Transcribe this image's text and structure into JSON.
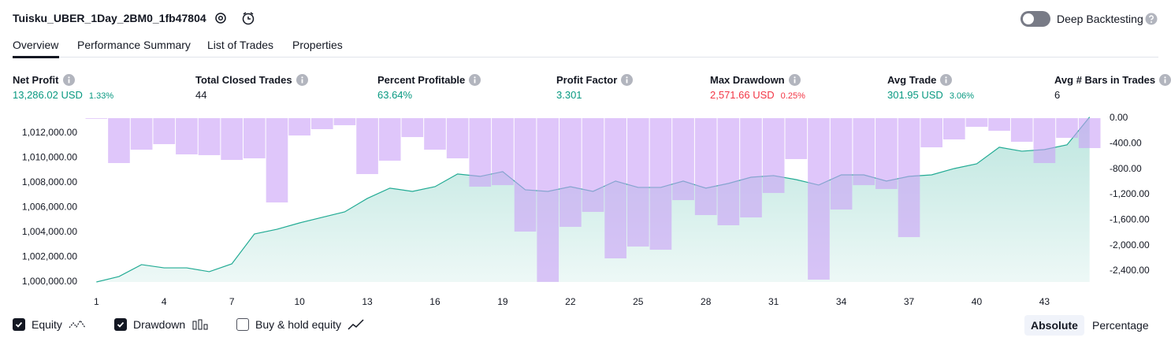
{
  "header": {
    "title": "Tuisku_UBER_1Day_2BM0_1fb47804",
    "deep_backtesting": "Deep Backtesting"
  },
  "tabs": [
    "Overview",
    "Performance Summary",
    "List of Trades",
    "Properties"
  ],
  "metrics": [
    {
      "label": "Net Profit",
      "value": "13,286.02 USD",
      "extra": "1.33%",
      "color": "#089981"
    },
    {
      "label": "Total Closed Trades",
      "value": "44",
      "color": "#131722"
    },
    {
      "label": "Percent Profitable",
      "value": "63.64%",
      "color": "#089981"
    },
    {
      "label": "Profit Factor",
      "value": "3.301",
      "color": "#089981"
    },
    {
      "label": "Max Drawdown",
      "value": "2,571.66 USD",
      "extra": "0.25%",
      "color": "#f23645"
    },
    {
      "label": "Avg Trade",
      "value": "301.95 USD",
      "extra": "3.06%",
      "color": "#089981"
    },
    {
      "label": "Avg # Bars in Trades",
      "value": "6",
      "color": "#131722"
    }
  ],
  "chart_data": {
    "type": "combo",
    "x": [
      1,
      2,
      3,
      4,
      5,
      6,
      7,
      8,
      9,
      10,
      11,
      12,
      13,
      14,
      15,
      16,
      17,
      18,
      19,
      20,
      21,
      22,
      23,
      24,
      25,
      26,
      27,
      28,
      29,
      30,
      31,
      32,
      33,
      34,
      35,
      36,
      37,
      38,
      39,
      40,
      41,
      42,
      43,
      44,
      45
    ],
    "xlim": [
      0.5,
      45.5
    ],
    "xticks": [
      1,
      4,
      7,
      10,
      13,
      16,
      19,
      22,
      25,
      28,
      31,
      34,
      37,
      40,
      43
    ],
    "series": [
      {
        "name": "Equity",
        "type": "line",
        "color": "#22ab94",
        "values": [
          1000000,
          1000440,
          1001400,
          1001140,
          1001140,
          1000830,
          1001460,
          1003870,
          1004250,
          1004760,
          1005210,
          1005650,
          1006730,
          1007560,
          1007300,
          1007680,
          1008700,
          1008510,
          1008890,
          1007430,
          1007300,
          1007680,
          1007300,
          1008130,
          1007620,
          1007620,
          1008130,
          1007560,
          1007940,
          1008440,
          1008570,
          1008250,
          1007810,
          1008630,
          1008630,
          1008130,
          1008510,
          1008630,
          1009140,
          1009520,
          1010860,
          1010540,
          1010670,
          1011050,
          1013286.02
        ]
      },
      {
        "name": "Drawdown",
        "type": "bar",
        "axis": "y2",
        "color": "#c9a0f7",
        "values": [
          -10,
          -705,
          -495,
          -408,
          -569,
          -581,
          -656,
          -631,
          -1324,
          -272,
          -173,
          -111,
          -878,
          -668,
          -297,
          -495,
          -631,
          -1076,
          -1052,
          -1781,
          -2571.66,
          -1707,
          -1472,
          -2202,
          -2016,
          -2066,
          -1287,
          -1522,
          -1682,
          -1559,
          -1175,
          -643,
          -2536,
          -1435,
          -1052,
          -1113,
          -1868,
          -458,
          -334,
          -136,
          -198,
          -371,
          -705,
          -309,
          -470
        ]
      }
    ],
    "ylim": [
      1000000,
      1013200
    ],
    "yticks": [
      {
        "value": 1000000,
        "label": "1,000,000.00"
      },
      {
        "value": 1002000,
        "label": "1,002,000.00"
      },
      {
        "value": 1004000,
        "label": "1,004,000.00"
      },
      {
        "value": 1006000,
        "label": "1,006,000.00"
      },
      {
        "value": 1008000,
        "label": "1,008,000.00"
      },
      {
        "value": 1010000,
        "label": "1,010,000.00"
      },
      {
        "value": 1012000,
        "label": "1,012,000.00"
      }
    ],
    "y2lim": [
      -2573,
      0
    ],
    "y2ticks": [
      {
        "value": 0,
        "label": "0.00"
      },
      {
        "value": -400,
        "label": "-400.00"
      },
      {
        "value": -800,
        "label": "-800.00"
      },
      {
        "value": -1200,
        "label": "-1,200.00"
      },
      {
        "value": -1600,
        "label": "-1,600.00"
      },
      {
        "value": -2000,
        "label": "-2,000.00"
      },
      {
        "value": -2400,
        "label": "-2,400.00"
      }
    ],
    "grid": false
  },
  "footer": {
    "buy_hold": {
      "label": "Buy & hold equity",
      "checked": false
    },
    "scale_buttons": [
      "Absolute",
      "Percentage"
    ],
    "active_scale": 0
  }
}
